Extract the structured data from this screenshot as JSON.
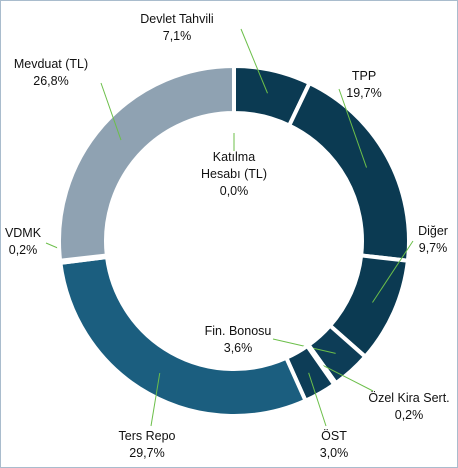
{
  "chart_data": {
    "type": "pie",
    "categories": [
      "Katılma Hesabı (TL)",
      "Devlet Tahvili",
      "TPP",
      "Diğer",
      "Fin. Bonosu",
      "Özel Kira Sert.",
      "ÖST",
      "Ters Repo",
      "VDMK",
      "Mevduat (TL)"
    ],
    "values": [
      0.0,
      7.1,
      19.7,
      9.7,
      3.6,
      0.2,
      3.0,
      29.7,
      0.2,
      26.8
    ],
    "value_labels": [
      "0,0%",
      "7,1%",
      "19,7%",
      "9,7%",
      "3,6%",
      "0,2%",
      "3,0%",
      "29,7%",
      "0,2%",
      "26,8%"
    ],
    "colors": [
      "#0b3a52",
      "#0b3a52",
      "#0b3a52",
      "#0b3a52",
      "#0d3d57",
      "#0d3d57",
      "#0d3d57",
      "#1b5e7f",
      "#1b5e7f",
      "#8fa2b2"
    ],
    "donut": true
  }
}
